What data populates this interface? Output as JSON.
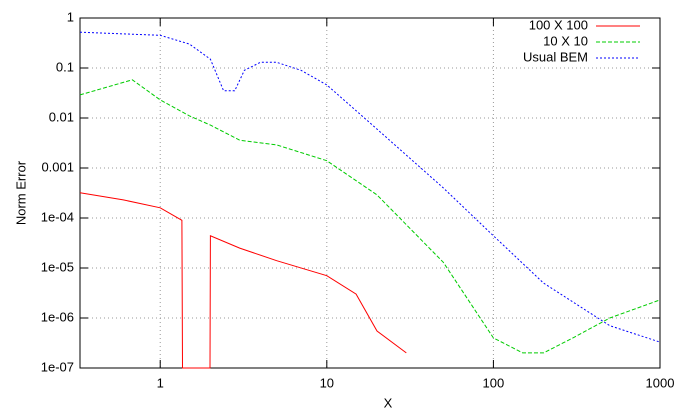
{
  "chart_data": {
    "type": "line",
    "x_label": "X",
    "y_label": "Norm Error",
    "xlog": true,
    "ylog": true,
    "grid": true,
    "legend": "top-right",
    "xlim": [
      0.33,
      1000
    ],
    "ylim": [
      1e-07,
      1
    ],
    "xticks": [
      1,
      10,
      100,
      1000
    ],
    "yticks": [
      {
        "value": 1e-07,
        "label": "1e-07"
      },
      {
        "value": 1e-06,
        "label": "1e-06"
      },
      {
        "value": 1e-05,
        "label": "1e-05"
      },
      {
        "value": 0.0001,
        "label": "1e-04"
      },
      0.001,
      0.01,
      0.1,
      1
    ],
    "series": [
      {
        "name": "100 X 100",
        "color": "#ff0000",
        "x": [
          0.33,
          0.6,
          1,
          1.35,
          1.36,
          1.99,
          2,
          3,
          5,
          10,
          15,
          20,
          30
        ],
        "values": [
          0.00032,
          0.00023,
          0.00016,
          9e-05,
          1e-07,
          1e-07,
          4.4e-05,
          2.5e-05,
          1.4e-05,
          7e-06,
          3e-06,
          5.5e-07,
          2e-07
        ]
      },
      {
        "name": "10 X 10",
        "color": "#00cc00",
        "x": [
          0.33,
          0.68,
          1,
          1.5,
          2,
          3,
          5,
          10,
          20,
          50,
          100,
          150,
          200,
          300,
          500,
          1000
        ],
        "values": [
          0.029,
          0.058,
          0.023,
          0.011,
          0.0072,
          0.0036,
          0.0029,
          0.0014,
          0.00029,
          1.3e-05,
          4e-07,
          2e-07,
          2e-07,
          4e-07,
          1e-06,
          2.3e-06
        ]
      },
      {
        "name": "Usual BEM",
        "color": "#0000ff",
        "x": [
          0.33,
          1,
          1.5,
          2,
          2.4,
          2.8,
          3.2,
          4,
          5,
          7,
          10,
          20,
          50,
          100,
          200,
          500,
          1000
        ],
        "values": [
          0.52,
          0.45,
          0.3,
          0.15,
          0.035,
          0.035,
          0.09,
          0.13,
          0.13,
          0.09,
          0.046,
          0.006,
          0.0004,
          4.4e-05,
          5e-06,
          7e-07,
          3.3e-07
        ]
      }
    ]
  }
}
